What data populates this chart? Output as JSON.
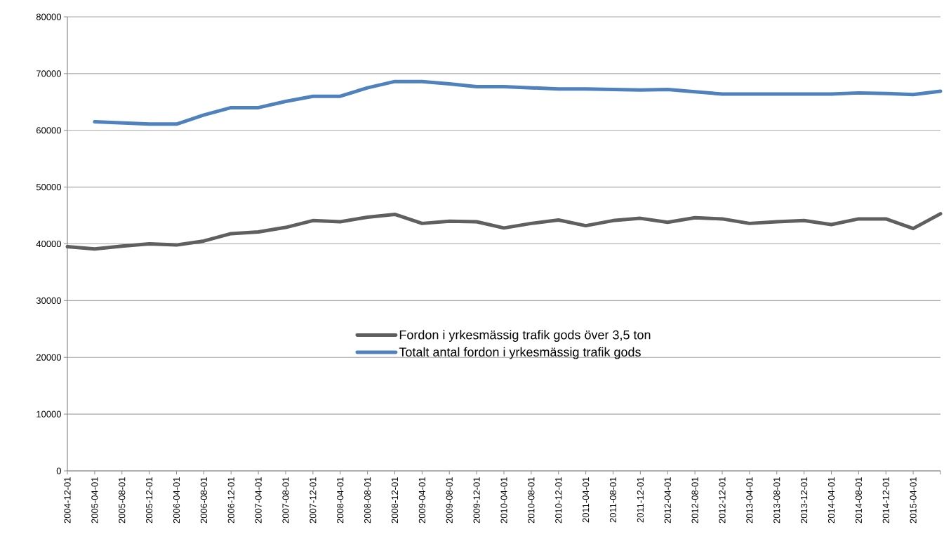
{
  "chart_data": {
    "type": "line",
    "categories": [
      "2004-12-01",
      "2005-04-01",
      "2005-08-01",
      "2005-12-01",
      "2006-04-01",
      "2006-08-01",
      "2006-12-01",
      "2007-04-01",
      "2007-08-01",
      "2007-12-01",
      "2008-04-01",
      "2008-08-01",
      "2008-12-01",
      "2009-04-01",
      "2009-08-01",
      "2009-12-01",
      "2010-04-01",
      "2010-08-01",
      "2010-12-01",
      "2011-04-01",
      "2011-08-01",
      "2011-12-01",
      "2012-04-01",
      "2012-08-01",
      "2012-12-01",
      "2013-04-01",
      "2013-08-01",
      "2013-12-01",
      "2014-04-01",
      "2014-08-01",
      "2014-12-01",
      "2015-04-01",
      null
    ],
    "series": [
      {
        "name": "Fordon i yrkesmässig trafik gods över 3,5 ton",
        "color": "#5f5f5f",
        "values": [
          39500,
          39100,
          39600,
          40000,
          39800,
          40500,
          41800,
          42100,
          42900,
          44100,
          43900,
          44700,
          45200,
          43600,
          44000,
          43900,
          42800,
          43600,
          44200,
          43200,
          44100,
          44500,
          43800,
          44600,
          44400,
          43600,
          43900,
          44100,
          43400,
          44400,
          44400,
          42700,
          45300
        ]
      },
      {
        "name": "Totalt antal fordon i yrkesmässig trafik gods",
        "color": "#4f81bd",
        "values": [
          null,
          61500,
          61300,
          61100,
          61100,
          62700,
          64000,
          64000,
          65100,
          66000,
          66000,
          67500,
          68600,
          68600,
          68200,
          67700,
          67700,
          67500,
          67300,
          67300,
          67200,
          67100,
          67200,
          66800,
          66400,
          66400,
          66400,
          66400,
          66400,
          66600,
          66500,
          66300,
          66900
        ]
      }
    ],
    "ylim": [
      0,
      80000
    ],
    "yticks": [
      0,
      10000,
      20000,
      30000,
      40000,
      50000,
      60000,
      70000,
      80000
    ],
    "grid": "y",
    "legend": "center",
    "marker": "none",
    "line_style": "solid"
  }
}
